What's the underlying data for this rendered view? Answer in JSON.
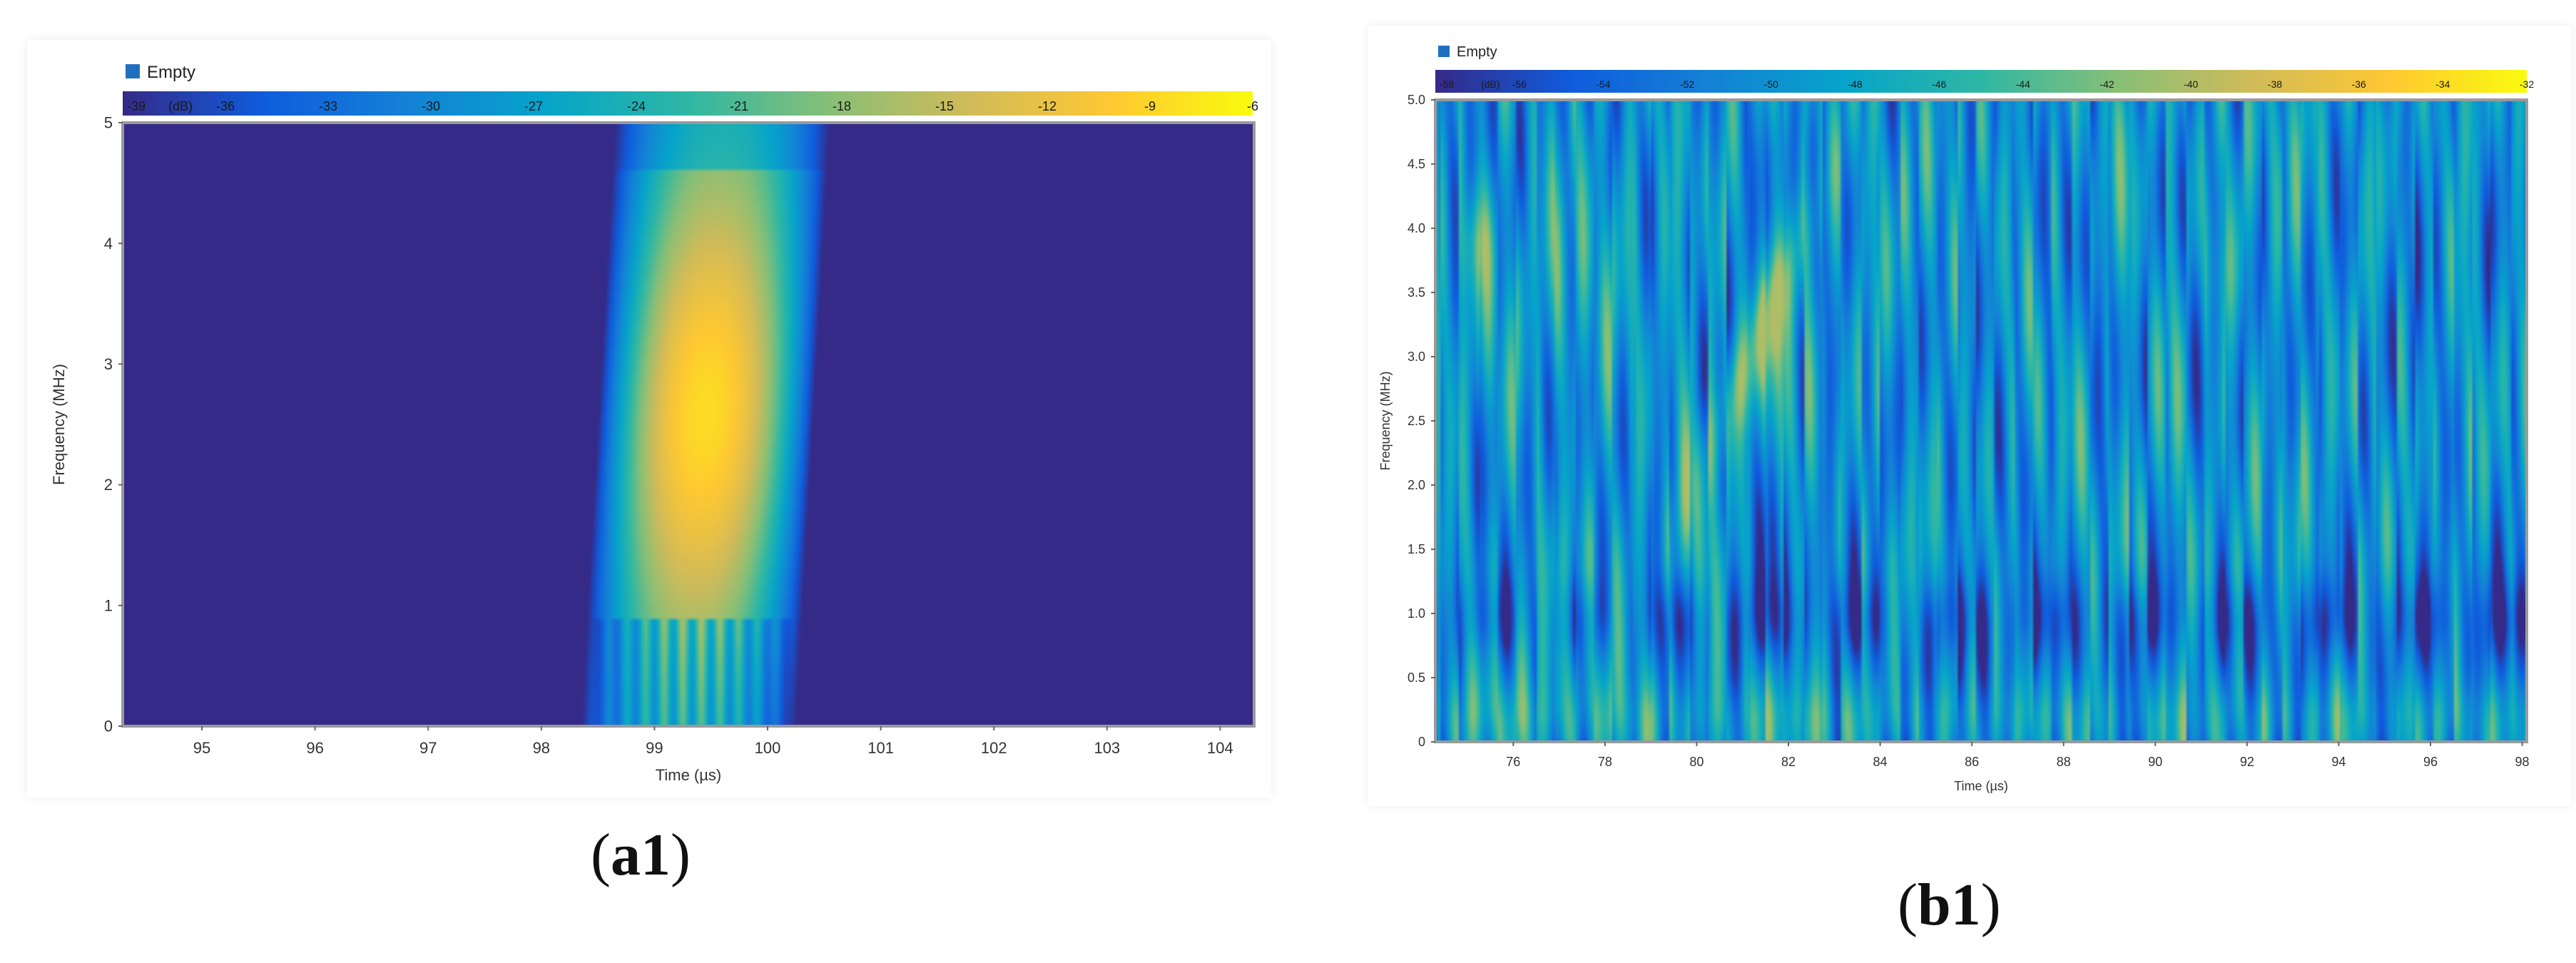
{
  "chart_data": [
    {
      "id": "a1",
      "type": "heatmap",
      "panel_label": "a1",
      "legend_entry": "Empty",
      "xlabel": "Time (µs)",
      "ylabel": "Frequency (MHz)",
      "xlim": [
        94.3,
        104.3
      ],
      "ylim": [
        0,
        5
      ],
      "x_ticks": [
        95,
        96,
        97,
        98,
        99,
        100,
        101,
        102,
        103,
        104
      ],
      "x_tick_labels": [
        "95",
        "96",
        "97",
        "98",
        "99",
        "100",
        "101",
        "102",
        "103",
        "104"
      ],
      "y_ticks": [
        0,
        1,
        2,
        3,
        4,
        5
      ],
      "y_tick_labels": [
        "0",
        "1",
        "2",
        "3",
        "4",
        "5"
      ],
      "colorbar": {
        "unit_label": "(dB)",
        "min": -39,
        "max": -6,
        "ticks": [
          -39,
          -36,
          -33,
          -30,
          -27,
          -24,
          -21,
          -18,
          -15,
          -12,
          -9,
          -6
        ],
        "tick_labels": [
          "-39",
          "-36",
          "-33",
          "-30",
          "-27",
          "-24",
          "-21",
          "-18",
          "-15",
          "-12",
          "-9",
          "-6"
        ],
        "colors": [
          "#352a87",
          "#0f5cdd",
          "#1481d6",
          "#06a4ca",
          "#2eb7a4",
          "#87bf77",
          "#d1bb59",
          "#fec832",
          "#f9fb0e"
        ]
      },
      "approximate_field": {
        "description_values": "background -39 dB; burst between 98.5 and 100.4 µs peaking near -10 dB",
        "burst_x": [
          98.5,
          100.4
        ],
        "peak_db": -10
      }
    },
    {
      "id": "b1",
      "type": "heatmap",
      "panel_label": "b1",
      "legend_entry": "Empty",
      "xlabel": "Time (µs)",
      "ylabel": "Frequency (MHz)",
      "xlim": [
        74.3,
        98.1
      ],
      "ylim": [
        0,
        5.0
      ],
      "x_ticks": [
        76,
        78,
        80,
        82,
        84,
        86,
        88,
        90,
        92,
        94,
        96,
        98
      ],
      "x_tick_labels": [
        "76",
        "78",
        "80",
        "82",
        "84",
        "86",
        "88",
        "90",
        "92",
        "94",
        "96",
        "98"
      ],
      "y_ticks": [
        0,
        0.5,
        1.0,
        1.5,
        2.0,
        2.5,
        3.0,
        3.5,
        4.0,
        4.5,
        5.0
      ],
      "y_tick_labels": [
        "0",
        "0.5",
        "1.0",
        "1.5",
        "2.0",
        "2.5",
        "3.0",
        "3.5",
        "4.0",
        "4.5",
        "5.0"
      ],
      "colorbar": {
        "unit_label": "(dB)",
        "min": -58,
        "max": -32,
        "ticks": [
          -58,
          -56,
          -54,
          -52,
          -50,
          -48,
          -46,
          -44,
          -42,
          -40,
          -38,
          -36,
          -34,
          -32
        ],
        "tick_labels": [
          "-58",
          "-56",
          "-54",
          "-52",
          "-50",
          "-48",
          "-46",
          "-44",
          "-42",
          "-40",
          "-38",
          "-36",
          "-34",
          "-32"
        ],
        "colors": [
          "#352a87",
          "#0f5cdd",
          "#1481d6",
          "#06a4ca",
          "#2eb7a4",
          "#87bf77",
          "#d1bb59",
          "#fec832",
          "#f9fb0e"
        ]
      },
      "approximate_field": {
        "hotspot_x": 82.4,
        "hotspot_y": 4.1,
        "peak_db": -40
      }
    }
  ]
}
